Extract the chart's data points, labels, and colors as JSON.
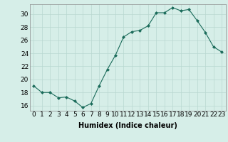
{
  "x": [
    0,
    1,
    2,
    3,
    4,
    5,
    6,
    7,
    8,
    9,
    10,
    11,
    12,
    13,
    14,
    15,
    16,
    17,
    18,
    19,
    20,
    21,
    22,
    23
  ],
  "y": [
    19.0,
    18.0,
    18.0,
    17.2,
    17.3,
    16.7,
    15.7,
    16.3,
    19.0,
    21.5,
    23.7,
    26.5,
    27.3,
    27.5,
    28.2,
    30.2,
    30.2,
    31.0,
    30.5,
    30.7,
    29.0,
    27.2,
    25.0,
    24.2
  ],
  "line_color": "#1a6b5a",
  "marker": "D",
  "marker_size": 2.0,
  "bg_color": "#d6eee8",
  "grid_color": "#b8d8d0",
  "ylabel_ticks": [
    16,
    18,
    20,
    22,
    24,
    26,
    28,
    30
  ],
  "ylim": [
    15.2,
    31.5
  ],
  "xlim": [
    -0.5,
    23.5
  ],
  "xlabel": "Humidex (Indice chaleur)",
  "xlabel_fontsize": 7,
  "tick_fontsize": 6.5
}
